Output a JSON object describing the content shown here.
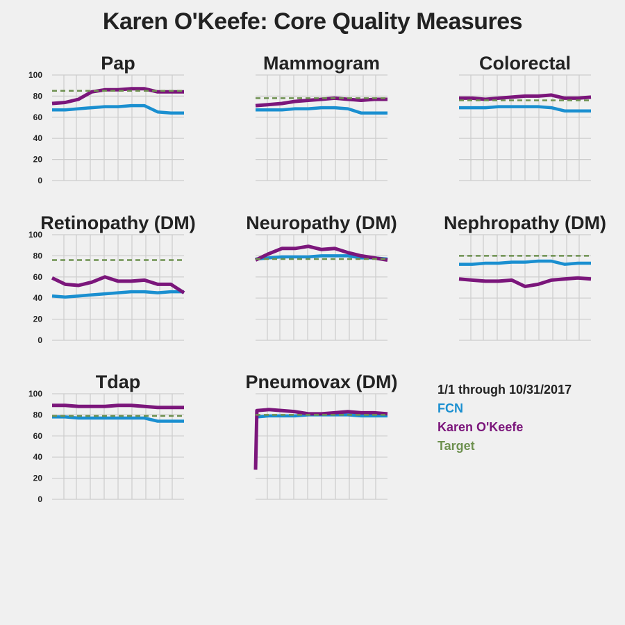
{
  "title": "Karen O'Keefe: Core Quality Measures",
  "legend": {
    "period": "1/1 through 10/31/2017",
    "entries": [
      {
        "label": "FCN",
        "color": "#1a8fd0"
      },
      {
        "label": "Karen O'Keefe",
        "color": "#7b167b"
      },
      {
        "label": "Target",
        "color": "#6e9150"
      }
    ],
    "period_color": "#222222"
  },
  "colors": {
    "fcn": "#1a8fd0",
    "provider": "#7b167b",
    "target": "#6e9150",
    "grid": "#cccccc"
  },
  "chart_data": [
    {
      "type": "line",
      "title": "Pap",
      "ylim": [
        0,
        100
      ],
      "yticks": [
        "0",
        "20",
        "40",
        "60",
        "80",
        "100"
      ],
      "x": [
        0,
        0.1,
        0.2,
        0.3,
        0.4,
        0.5,
        0.6,
        0.7,
        0.8,
        0.9,
        1
      ],
      "series": [
        {
          "name": "FCN",
          "values": [
            67,
            67,
            68,
            69,
            70,
            70,
            71,
            71,
            65,
            64,
            64
          ]
        },
        {
          "name": "Karen O'Keefe",
          "values": [
            73,
            74,
            77,
            84,
            86,
            86,
            87,
            87,
            84,
            84,
            84
          ]
        },
        {
          "name": "Target",
          "values": [
            85,
            85,
            85,
            85,
            85,
            85,
            85,
            85,
            85,
            85,
            85
          ]
        }
      ]
    },
    {
      "type": "line",
      "title": "Mammogram",
      "ylim": [
        0,
        100
      ],
      "yticks": [
        "0",
        "20",
        "40",
        "60",
        "80",
        "100"
      ],
      "x": [
        0,
        0.1,
        0.2,
        0.3,
        0.4,
        0.5,
        0.6,
        0.7,
        0.8,
        0.9,
        1
      ],
      "series": [
        {
          "name": "FCN",
          "values": [
            67,
            67,
            67,
            68,
            68,
            69,
            69,
            68,
            64,
            64,
            64
          ]
        },
        {
          "name": "Karen O'Keefe",
          "values": [
            71,
            72,
            73,
            75,
            76,
            77,
            78,
            77,
            76,
            77,
            77
          ]
        },
        {
          "name": "Target",
          "values": [
            78,
            78,
            78,
            78,
            78,
            78,
            78,
            78,
            78,
            78,
            78
          ]
        }
      ]
    },
    {
      "type": "line",
      "title": "Colorectal",
      "ylim": [
        0,
        100
      ],
      "yticks": [
        "0",
        "20",
        "40",
        "60",
        "80",
        "100"
      ],
      "x": [
        0,
        0.1,
        0.2,
        0.3,
        0.4,
        0.5,
        0.6,
        0.7,
        0.8,
        0.9,
        1
      ],
      "series": [
        {
          "name": "FCN",
          "values": [
            69,
            69,
            69,
            70,
            70,
            70,
            70,
            69,
            66,
            66,
            66
          ]
        },
        {
          "name": "Karen O'Keefe",
          "values": [
            78,
            78,
            77,
            78,
            79,
            80,
            80,
            81,
            78,
            78,
            79
          ]
        },
        {
          "name": "Target",
          "values": [
            76,
            76,
            76,
            76,
            76,
            76,
            76,
            76,
            76,
            76,
            76
          ]
        }
      ]
    },
    {
      "type": "line",
      "title": "Retinopathy (DM)",
      "ylim": [
        0,
        100
      ],
      "yticks": [
        "0",
        "20",
        "40",
        "60",
        "80",
        "100"
      ],
      "x": [
        0,
        0.1,
        0.2,
        0.3,
        0.4,
        0.5,
        0.6,
        0.7,
        0.8,
        0.9,
        1
      ],
      "series": [
        {
          "name": "FCN",
          "values": [
            42,
            41,
            42,
            43,
            44,
            45,
            46,
            46,
            45,
            46,
            46
          ]
        },
        {
          "name": "Karen O'Keefe",
          "values": [
            59,
            53,
            52,
            55,
            60,
            56,
            56,
            57,
            53,
            53,
            45
          ]
        },
        {
          "name": "Target",
          "values": [
            76,
            76,
            76,
            76,
            76,
            76,
            76,
            76,
            76,
            76,
            76
          ]
        }
      ]
    },
    {
      "type": "line",
      "title": "Neuropathy (DM)",
      "ylim": [
        0,
        100
      ],
      "yticks": [
        "0",
        "20",
        "40",
        "60",
        "80",
        "100"
      ],
      "x": [
        0,
        0.1,
        0.2,
        0.3,
        0.4,
        0.5,
        0.6,
        0.7,
        0.8,
        0.9,
        1
      ],
      "series": [
        {
          "name": "FCN",
          "values": [
            77,
            78,
            79,
            79,
            79,
            80,
            80,
            80,
            78,
            78,
            77
          ]
        },
        {
          "name": "Karen O'Keefe",
          "values": [
            76,
            82,
            87,
            87,
            89,
            86,
            87,
            83,
            80,
            78,
            76
          ]
        },
        {
          "name": "Target",
          "values": [
            77,
            77,
            77,
            77,
            77,
            77,
            77,
            77,
            77,
            77,
            77
          ]
        }
      ]
    },
    {
      "type": "line",
      "title": "Nephropathy (DM)",
      "ylim": [
        0,
        100
      ],
      "yticks": [
        "0",
        "20",
        "40",
        "60",
        "80",
        "100"
      ],
      "x": [
        0,
        0.1,
        0.2,
        0.3,
        0.4,
        0.5,
        0.6,
        0.7,
        0.8,
        0.9,
        1
      ],
      "series": [
        {
          "name": "FCN",
          "values": [
            72,
            72,
            73,
            73,
            74,
            74,
            75,
            75,
            72,
            73,
            73
          ]
        },
        {
          "name": "Karen O'Keefe",
          "values": [
            58,
            57,
            56,
            56,
            57,
            51,
            53,
            57,
            58,
            59,
            58
          ]
        },
        {
          "name": "Target",
          "values": [
            80,
            80,
            80,
            80,
            80,
            80,
            80,
            80,
            80,
            80,
            80
          ]
        }
      ]
    },
    {
      "type": "line",
      "title": "Tdap",
      "ylim": [
        0,
        100
      ],
      "yticks": [
        "0",
        "20",
        "40",
        "60",
        "80",
        "100"
      ],
      "x": [
        0,
        0.1,
        0.2,
        0.3,
        0.4,
        0.5,
        0.6,
        0.7,
        0.8,
        0.9,
        1
      ],
      "series": [
        {
          "name": "FCN",
          "values": [
            78,
            78,
            77,
            77,
            77,
            77,
            77,
            77,
            74,
            74,
            74
          ]
        },
        {
          "name": "Karen O'Keefe",
          "values": [
            89,
            89,
            88,
            88,
            88,
            89,
            89,
            88,
            87,
            87,
            87
          ]
        },
        {
          "name": "Target",
          "values": [
            79,
            79,
            79,
            79,
            79,
            79,
            79,
            79,
            79,
            79,
            79
          ]
        }
      ]
    },
    {
      "type": "line",
      "title": "Pneumovax (DM)",
      "ylim": [
        0,
        100
      ],
      "yticks": [
        "0",
        "20",
        "40",
        "60",
        "80",
        "100"
      ],
      "x": [
        0,
        0.01,
        0.1,
        0.2,
        0.3,
        0.4,
        0.5,
        0.6,
        0.7,
        0.8,
        0.9,
        1
      ],
      "series": [
        {
          "name": "FCN",
          "values": [
            78,
            78,
            79,
            79,
            79,
            80,
            80,
            80,
            80,
            79,
            79,
            79
          ]
        },
        {
          "name": "Karen O'Keefe",
          "values": [
            28,
            84,
            85,
            84,
            83,
            81,
            81,
            82,
            83,
            82,
            82,
            81
          ]
        },
        {
          "name": "Target",
          "values": [
            80,
            80,
            80,
            80,
            80,
            80,
            80,
            80,
            80,
            80,
            80,
            80
          ]
        }
      ]
    }
  ]
}
